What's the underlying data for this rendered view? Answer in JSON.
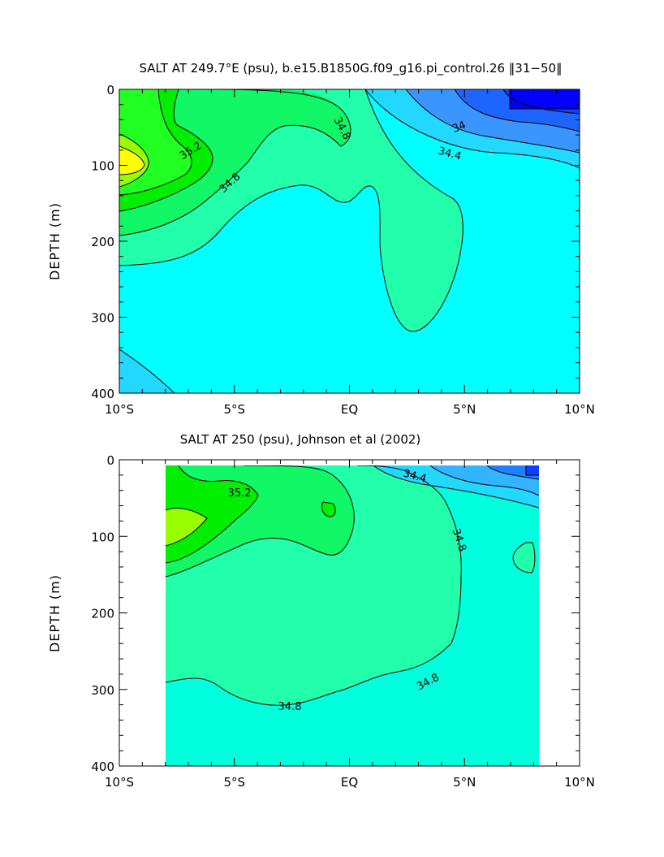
{
  "chart_data": [
    {
      "type": "contour",
      "title": "SALT AT 249.7°E (psu), b.e15.B1850G.f09_g16.pi_control.26 ‖31−50‖",
      "xlabel": "",
      "ylabel": "DEPTH (m)",
      "xlim": [
        -10,
        10
      ],
      "ylim": [
        400,
        0
      ],
      "x_ticks": [
        "10°S",
        "5°S",
        "EQ",
        "5°N",
        "10°N"
      ],
      "y_ticks": [
        "0",
        "100",
        "200",
        "300",
        "400"
      ],
      "contour_interval_psu": 0.2,
      "contour_labels": [
        "35.2",
        "34.8",
        "34.8",
        "34",
        "34.4"
      ],
      "fill_levels": [
        {
          "level": "<34.0",
          "color": "#0000ff"
        },
        {
          "level": "34.0",
          "color": "#1e64ff"
        },
        {
          "level": "34.2",
          "color": "#3a96ff"
        },
        {
          "level": "34.4",
          "color": "#22d8ff"
        },
        {
          "level": "34.6",
          "color": "#00ffff"
        },
        {
          "level": "34.8",
          "color": "#22ffaa"
        },
        {
          "level": "35.0",
          "color": "#11f766"
        },
        {
          "level": "35.2",
          "color": "#00ee00"
        },
        {
          "level": "35.4",
          "color": "#22ff22"
        },
        {
          "level": "35.6",
          "color": "#99ff00"
        },
        {
          "level": ">35.8",
          "color": "#ffff00"
        }
      ]
    },
    {
      "type": "contour",
      "title": "SALT AT 250 (psu), Johnson et al (2002)",
      "xlabel": "",
      "ylabel": "DEPTH (m)",
      "xlim": [
        -10,
        10
      ],
      "ylim": [
        400,
        0
      ],
      "data_xlim": [
        -8,
        8.2
      ],
      "data_ylim": [
        400,
        7
      ],
      "x_ticks": [
        "10°S",
        "5°S",
        "EQ",
        "5°N",
        "10°N"
      ],
      "y_ticks": [
        "0",
        "100",
        "200",
        "300",
        "400"
      ],
      "contour_interval_psu": 0.2,
      "contour_labels": [
        "35.2",
        "34.4",
        "34.8",
        "34.8",
        "34.8"
      ]
    }
  ]
}
